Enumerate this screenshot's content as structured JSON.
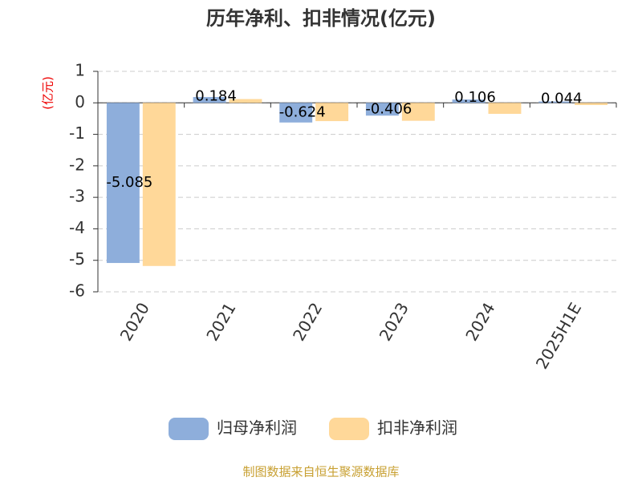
{
  "chart_data": {
    "type": "bar",
    "title": "历年净利、扣非情况(亿元)",
    "y_label": "(亿元)",
    "categories": [
      "2020",
      "2021",
      "2022",
      "2023",
      "2024",
      "2025H1E"
    ],
    "series": [
      {
        "name": "归母净利润",
        "color": "#8eaedb",
        "values": [
          -5.085,
          0.184,
          -0.624,
          -0.406,
          0.106,
          0.044
        ]
      },
      {
        "name": "扣非净利润",
        "color": "#ffd899",
        "values": [
          -5.18,
          0.12,
          -0.58,
          -0.57,
          -0.35,
          -0.07
        ]
      }
    ],
    "labeled_series": 0,
    "ylim": [
      -6,
      1
    ],
    "yticks": [
      1,
      0,
      -1,
      -2,
      -3,
      -4,
      -5,
      -6
    ],
    "grid": true,
    "source": "制图数据来自恒生聚源数据库"
  }
}
